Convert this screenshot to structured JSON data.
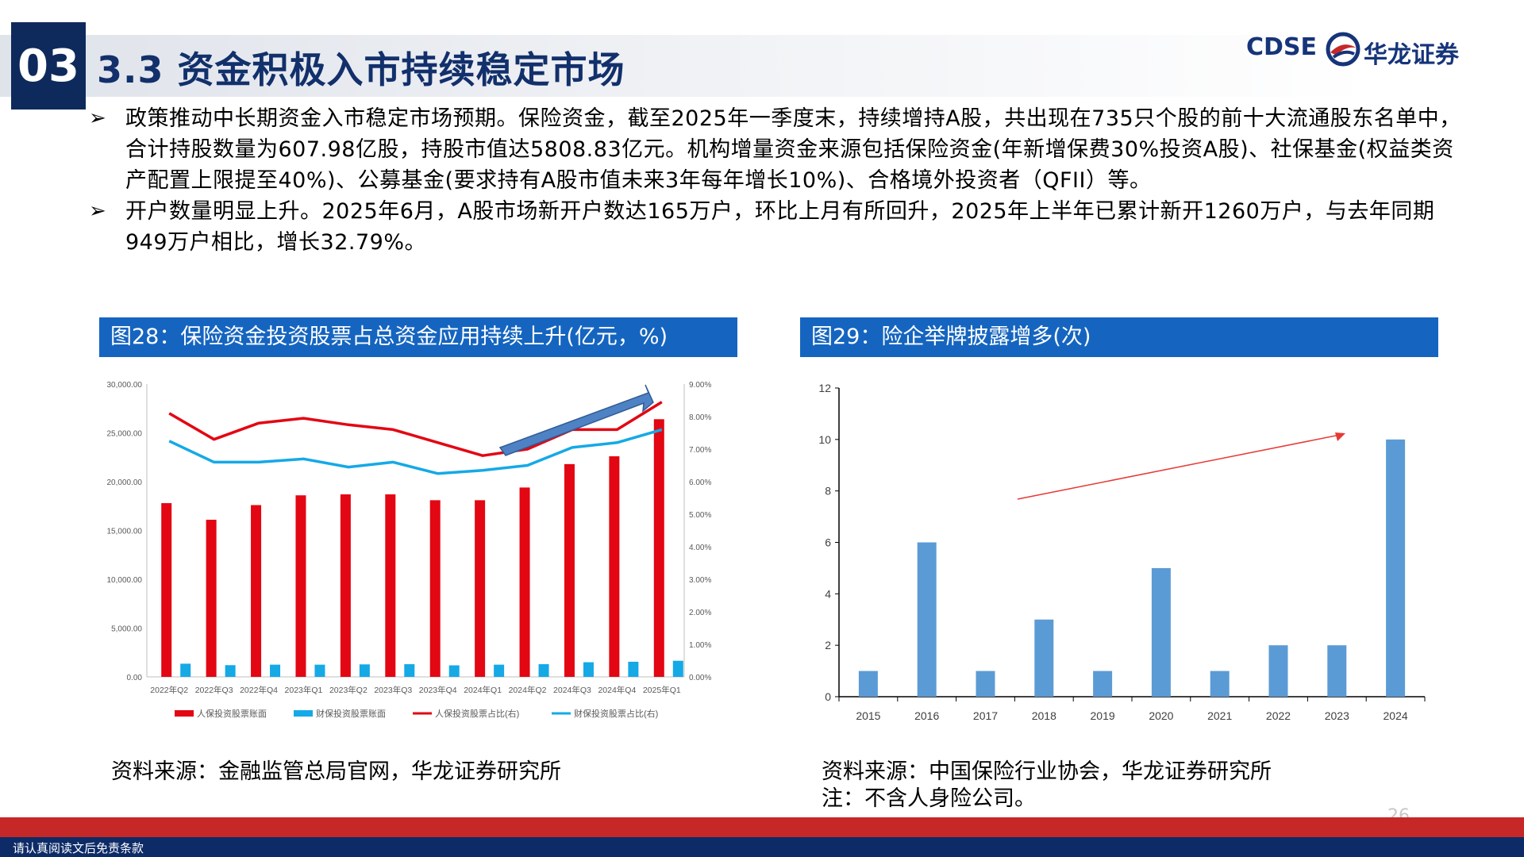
{
  "header": {
    "section_number": "03",
    "title": "3.3 资金积极入市持续稳定市场",
    "logo_text": "CDSE",
    "logo_cn": "华龙证券"
  },
  "bullets": [
    "政策推动中长期资金入市稳定市场预期。保险资金，截至2025年一季度末，持续增持A股，共出现在735只个股的前十大流通股东名单中，合计持股数量为607.98亿股，持股市值达5808.83亿元。机构增量资金来源包括保险资金(年新增保费30%投资A股)、社保基金(权益类资产配置上限提至40%)、公募基金(要求持有A股市值未来3年每年增长10%)、合格境外投资者（QFII）等。",
    "开户数量明显上升。2025年6月，A股市场新开户数达165万户，环比上月有所回升，2025年上半年已累计新开1260万户，与去年同期949万户相比，增长32.79%。"
  ],
  "figure28": {
    "caption": "图28：保险资金投资股票占总资金应用持续上升(亿元，%)",
    "source": "资料来源：金融监管总局官网，华龙证券研究所"
  },
  "figure29": {
    "caption": "图29：险企举牌披露增多(次)",
    "source": "资料来源：中国保险行业协会，华龙证券研究所",
    "note": "注：不含人身险公司。"
  },
  "footer": {
    "page_number": "26",
    "disclaimer": "请认真阅读文后免责条款"
  },
  "colors": {
    "navy": "#0e2a5c",
    "caption_blue": "#1565c0",
    "red_series": "#e30613",
    "cyan_series": "#15a9e6",
    "bar_blue": "#5b9bd5"
  },
  "chart_data": [
    {
      "type": "bar",
      "categories": [
        "2022年Q2",
        "2022年Q3",
        "2022年Q4",
        "2023年Q1",
        "2023年Q2",
        "2023年Q3",
        "2023年Q4",
        "2024年Q1",
        "2024年Q2",
        "2024年Q3",
        "2024年Q4",
        "2025年Q1"
      ],
      "series": [
        {
          "name": "人保投资股票账面",
          "kind": "bar",
          "axis": "left",
          "color": "#e30613",
          "values": [
            17800,
            16100,
            17600,
            18600,
            18700,
            18700,
            18100,
            18100,
            19400,
            21800,
            22600,
            26400
          ]
        },
        {
          "name": "财保投资股票账面",
          "kind": "bar",
          "axis": "left",
          "color": "#15a9e6",
          "values": [
            1350,
            1200,
            1250,
            1250,
            1280,
            1300,
            1180,
            1250,
            1300,
            1500,
            1550,
            1650
          ]
        },
        {
          "name": "人保投资股票占比(右)",
          "kind": "line",
          "axis": "right",
          "color": "#e30613",
          "values": [
            8.1,
            7.3,
            7.8,
            7.95,
            7.75,
            7.6,
            7.2,
            6.8,
            7.0,
            7.6,
            7.6,
            8.45
          ]
        },
        {
          "name": "财保投资股票占比(右)",
          "kind": "line",
          "axis": "right",
          "color": "#15a9e6",
          "values": [
            7.25,
            6.6,
            6.6,
            6.7,
            6.45,
            6.6,
            6.25,
            6.35,
            6.5,
            7.05,
            7.2,
            7.6
          ]
        }
      ],
      "left_axis": {
        "min": 0,
        "max": 30000,
        "ticks": [
          "0.00",
          "5,000.00",
          "10,000.00",
          "15,000.00",
          "20,000.00",
          "25,000.00",
          "30,000.00"
        ]
      },
      "right_axis": {
        "min": 0,
        "max": 9,
        "ticks": [
          "0.00%",
          "1.00%",
          "2.00%",
          "3.00%",
          "4.00%",
          "5.00%",
          "6.00%",
          "7.00%",
          "8.00%",
          "9.00%"
        ]
      },
      "grid": false,
      "legend_position": "bottom",
      "annotation": "upward arrow",
      "title": "",
      "xlabel": "",
      "ylabel": ""
    },
    {
      "type": "bar",
      "categories": [
        "2015",
        "2016",
        "2017",
        "2018",
        "2019",
        "2020",
        "2021",
        "2022",
        "2023",
        "2024"
      ],
      "values": [
        1,
        6,
        1,
        3,
        1,
        5,
        1,
        2,
        2,
        10
      ],
      "ylim": [
        0,
        12
      ],
      "yticks": [
        "0",
        "2",
        "4",
        "6",
        "8",
        "10",
        "12"
      ],
      "color": "#5b9bd5",
      "grid": false,
      "annotation": "red trend arrow",
      "title": "",
      "xlabel": "",
      "ylabel": ""
    }
  ]
}
